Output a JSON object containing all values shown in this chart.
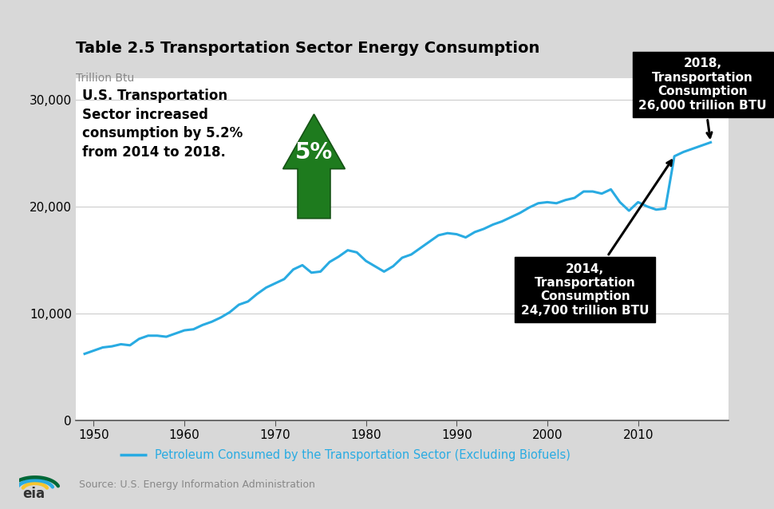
{
  "title": "Table 2.5 Transportation Sector Energy Consumption",
  "ylabel": "Trillion Btu",
  "line_color": "#29ABE2",
  "line_label": "Petroleum Consumed by the Transportation Sector (Excluding Biofuels)",
  "background_color": "#FFFFFF",
  "fig_bg": "#F0F0F0",
  "xlim": [
    1948,
    2020
  ],
  "ylim": [
    0,
    32000
  ],
  "yticks": [
    0,
    10000,
    20000,
    30000
  ],
  "xticks": [
    1950,
    1960,
    1970,
    1980,
    1990,
    2000,
    2010
  ],
  "source_text": "Source: U.S. Energy Information Administration",
  "annotation_2018_text": "2018,\nTransportation\nConsumption\n26,000 trillion BTU",
  "annotation_2014_text": "2014,\nTransportation\nConsumption\n24,700 trillion BTU",
  "text_annotation": "U.S. Transportation\nSector increased\nconsumption by 5.2%\nfrom 2014 to 2018.",
  "pct_text": "5%",
  "years": [
    1949,
    1950,
    1951,
    1952,
    1953,
    1954,
    1955,
    1956,
    1957,
    1958,
    1959,
    1960,
    1961,
    1962,
    1963,
    1964,
    1965,
    1966,
    1967,
    1968,
    1969,
    1970,
    1971,
    1972,
    1973,
    1974,
    1975,
    1976,
    1977,
    1978,
    1979,
    1980,
    1981,
    1982,
    1983,
    1984,
    1985,
    1986,
    1987,
    1988,
    1989,
    1990,
    1991,
    1992,
    1993,
    1994,
    1995,
    1996,
    1997,
    1998,
    1999,
    2000,
    2001,
    2002,
    2003,
    2004,
    2005,
    2006,
    2007,
    2008,
    2009,
    2010,
    2011,
    2012,
    2013,
    2014,
    2015,
    2016,
    2017,
    2018
  ],
  "values": [
    6200,
    6500,
    6800,
    6900,
    7100,
    7000,
    7600,
    7900,
    7900,
    7800,
    8100,
    8400,
    8500,
    8900,
    9200,
    9600,
    10100,
    10800,
    11100,
    11800,
    12400,
    12800,
    13200,
    14100,
    14500,
    13800,
    13900,
    14800,
    15300,
    15900,
    15700,
    14900,
    14400,
    13900,
    14400,
    15200,
    15500,
    16100,
    16700,
    17300,
    17500,
    17400,
    17100,
    17600,
    17900,
    18300,
    18600,
    19000,
    19400,
    19900,
    20300,
    20400,
    20300,
    20600,
    20800,
    21400,
    21400,
    21200,
    21600,
    20400,
    19600,
    20400,
    20000,
    19700,
    19800,
    24700,
    25100,
    25400,
    25700,
    26000
  ]
}
